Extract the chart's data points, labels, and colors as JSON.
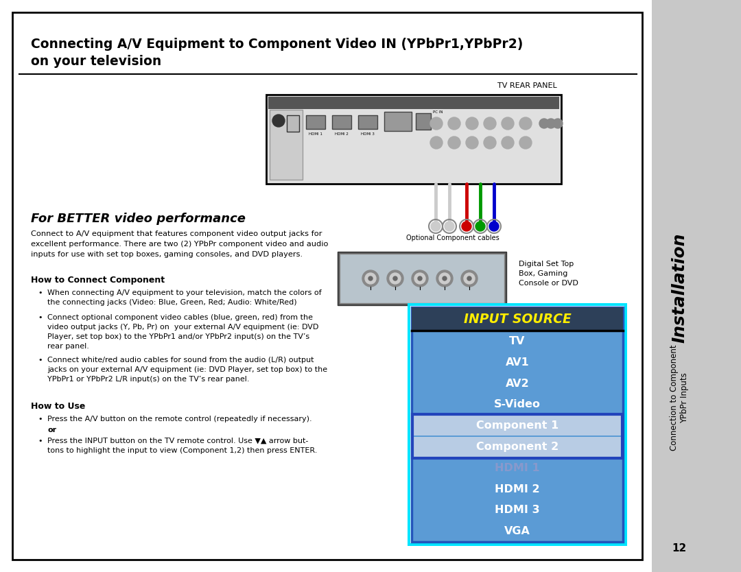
{
  "title_line1": "Connecting A/V Equipment to Component Video IN (YPbPr1,YPbPr2)",
  "title_line2": "on your television",
  "section_header": "For BETTER video performance",
  "body_text1": "Connect to A/V equipment that features component video output jacks for\nexcellent performance. There are two (2) YPbPr component video and audio\ninputs for use with set top boxes, gaming consoles, and DVD players.",
  "how_to_connect_header": "How to Connect Component",
  "bullet1_line1": "When connecting A/V equipment to your television, match the colors of",
  "bullet1_line2": "the connecting jacks (Video: Blue, Green, Red; Audio: White/Red)",
  "bullet2_line1": "Connect optional component video cables (blue, green, red) from the",
  "bullet2_line2": "video output jacks (Y, Pb, Pr) on  your external A/V equipment (ie: DVD",
  "bullet2_line3": "Player, set top box) to the YPbPr1 and/or YPbPr2 input(s) on the TV’s",
  "bullet2_line4": "rear panel.",
  "bullet3_line1": "Connect white/red audio cables for sound from the audio (L/R) output",
  "bullet3_line2": "jacks on your external A/V equipment (ie: DVD Player, set top box) to the",
  "bullet3_line3": "YPbPr1 or YPbPr2 L/R input(s) on the TV’s rear panel.",
  "how_to_use_header": "How to Use",
  "use_bullet1": "Press the A/V button on the remote control (repeatedly if necessary).",
  "use_or": "or",
  "use_bullet2_line1": "Press the INPUT button on the TV remote control. Use ▼▲ arrow but-",
  "use_bullet2_line2": "tons to highlight the input to view (Component 1,2) then press ENTER.",
  "tv_rear_panel_label": "TV REAR PANEL",
  "optional_cables_label": "Optional Component cables",
  "digital_set_top_label1": "Digital Set Top",
  "digital_set_top_label2": "Box, Gaming",
  "digital_set_top_label3": "Console or DVD",
  "input_source_title": "INPUT SOURCE",
  "menu_items": [
    "TV",
    "AV1",
    "AV2",
    "S-Video",
    "Component 1",
    "Component 2",
    "HDMI 1",
    "HDMI 2",
    "HDMI 3",
    "VGA"
  ],
  "highlighted_items": [
    "Component 1",
    "Component 2"
  ],
  "dimmed_items": [
    "HDMI 1"
  ],
  "sidebar_top": "Installation",
  "sidebar_bottom_line1": "Connection to Component",
  "sidebar_bottom_line2": "YPbPr Inputs",
  "page_number": "12",
  "bg_color": "#ffffff",
  "border_color": "#000000",
  "sidebar_bg": "#c8c8c8",
  "menu_bg": "#5b9bd5",
  "menu_header_bg": "#2d4059",
  "menu_highlight_bg": "#b8cce4",
  "menu_border_color": "#00e5ff",
  "menu_inner_border": "#2255bb"
}
